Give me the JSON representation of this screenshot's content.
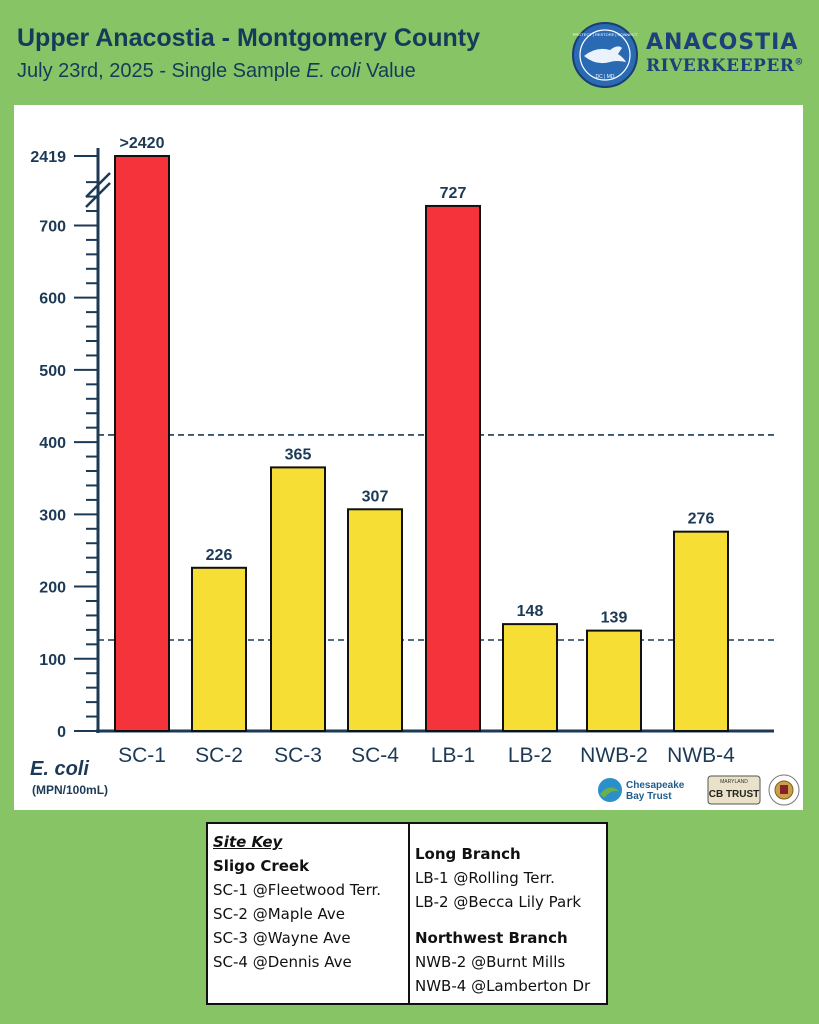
{
  "header": {
    "title": "Upper Anacostia - Montgomery County",
    "subtitle_pre": "July 23rd, 2025 - Single Sample ",
    "subtitle_em": "E. coli",
    "subtitle_post": " Value"
  },
  "logo": {
    "line1": "ANACOSTIA",
    "line2": "RIVERKEEPER",
    "registered": "®",
    "badge_text": "PROTECT | RESTORE | CONNECT",
    "badge_sub": "DC | MD"
  },
  "chart_data": {
    "type": "bar",
    "categories": [
      "SC-1",
      "SC-2",
      "SC-3",
      "SC-4",
      "LB-1",
      "LB-2",
      "NWB-2",
      "NWB-4"
    ],
    "values": [
      2420,
      226,
      365,
      307,
      727,
      148,
      139,
      276
    ],
    "value_labels": [
      ">2420",
      "226",
      "365",
      "307",
      "727",
      "148",
      "139",
      "276"
    ],
    "bar_colors": [
      "#f5333a",
      "#f6de35",
      "#f6de35",
      "#f6de35",
      "#f5333a",
      "#f6de35",
      "#f6de35",
      "#f6de35"
    ],
    "ylabel": "E. coli",
    "ylabel_units": "(MPN/100mL)",
    "y_ticks": [
      "0",
      "100",
      "200",
      "300",
      "400",
      "500",
      "600",
      "700",
      "2419"
    ],
    "y_tick_values": [
      0,
      100,
      200,
      300,
      400,
      500,
      600,
      700,
      2419
    ],
    "ylim": [
      0,
      2420
    ],
    "axis_break": true,
    "reference_lines": [
      410,
      126
    ],
    "reference_line_style": "dashed"
  },
  "sponsors": {
    "cbt_line1": "Chesapeake",
    "cbt_line2": "Bay Trust",
    "plate_top": "MARYLAND",
    "plate_text": "CB TRUST"
  },
  "site_key": {
    "heading": "Site Key",
    "groups": {
      "sligo": {
        "name": "Sligo Creek",
        "sites": [
          "SC-1 @Fleetwood Terr.",
          "SC-2 @Maple Ave",
          "SC-3 @Wayne Ave",
          "SC-4 @Dennis Ave"
        ]
      },
      "long_branch": {
        "name": "Long Branch",
        "sites": [
          "LB-1 @Rolling Terr.",
          "LB-2 @Becca Lily Park"
        ]
      },
      "northwest": {
        "name": "Northwest Branch",
        "sites": [
          "NWB-2 @Burnt Mills",
          "NWB-4 @Lamberton Dr"
        ]
      }
    }
  }
}
